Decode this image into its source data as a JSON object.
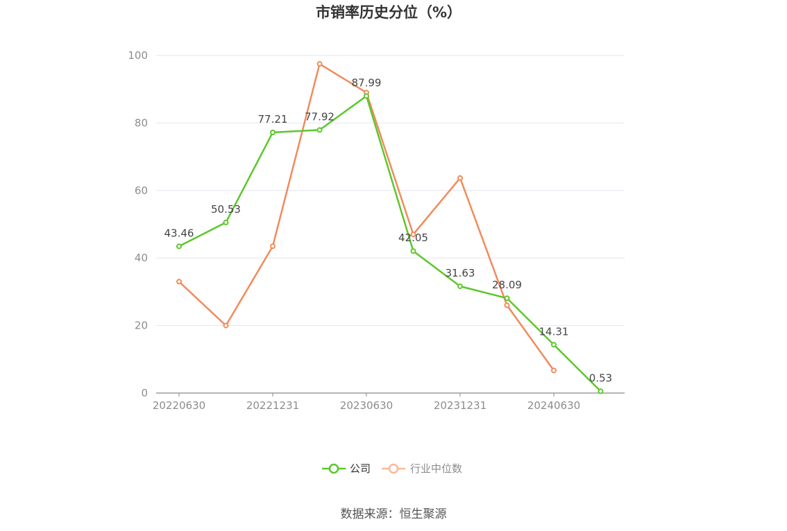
{
  "chart_data": {
    "type": "line",
    "title": "市销率历史分位（%）",
    "xlabel": "",
    "ylabel": "",
    "ylim": [
      0,
      100
    ],
    "yticks": [
      0,
      20,
      40,
      60,
      80,
      100
    ],
    "x": [
      "20220630",
      "20220930",
      "20221231",
      "20230331",
      "20230630",
      "20230930",
      "20231231",
      "20240331",
      "20240630",
      "20240930"
    ],
    "xtick_labels": [
      "20220630",
      "20221231",
      "20230630",
      "20231231",
      "20240630"
    ],
    "grid": true,
    "legend_position": "bottom",
    "series": [
      {
        "name": "公司",
        "color": "#5cc72a",
        "values": [
          43.46,
          50.53,
          77.21,
          77.92,
          87.99,
          42.05,
          31.63,
          28.09,
          14.31,
          0.53
        ],
        "labels": [
          "43.46",
          "50.53",
          "77.21",
          "77.92",
          "87.99",
          "42.05",
          "31.63",
          "28.09",
          "14.31",
          "0.53"
        ]
      },
      {
        "name": "行业中位数",
        "color": "#f28a5a",
        "legend_color": "#f9b99c",
        "values": [
          33.0,
          20.0,
          43.5,
          97.5,
          89.0,
          47.0,
          63.7,
          26.0,
          6.7,
          null
        ]
      }
    ]
  },
  "source": "数据来源：恒生聚源"
}
